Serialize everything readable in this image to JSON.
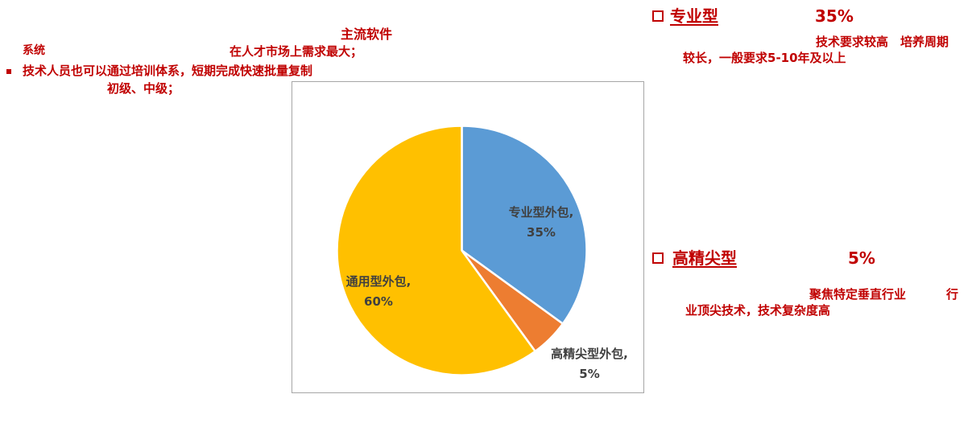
{
  "colors": {
    "accent_red": "#C00000",
    "chart_label_gray": "#404040",
    "chart_border_gray": "#A6A6A6"
  },
  "icons": {
    "section_bullet": "hollow-square-bullet",
    "list_bullet": "filled-square-bullet"
  },
  "annotations": {
    "system_fragment": "系统",
    "mainstream_software": "主流软件",
    "market_demand_line": "在人才市场上需求最大；",
    "training_line": "技术人员也可以通过培训体系，短期完成快速批量复制",
    "levels_line": "初级、中级；"
  },
  "professional_block": {
    "title": "专业型",
    "percent": "35%",
    "detail_part1": "技术要求较高",
    "detail_part2": "培养周期",
    "detail_line2": "较长，一般要求5-10年及以上"
  },
  "highend_block": {
    "title": "高精尖型",
    "percent": "5%",
    "detail_part1": "聚焦特定垂直行业",
    "detail_part2": "行",
    "detail_line2": "业顶尖技术，技术复杂度高"
  },
  "chart_data": {
    "type": "pie",
    "title": "",
    "start_angle_deg": 0,
    "direction": "clockwise",
    "legend": "none",
    "label_color": "#404040",
    "slices": [
      {
        "label": "专业型外包",
        "value": 35,
        "color": "#5B9BD5",
        "label_line1": "专业型外包,",
        "label_line2": "35%",
        "label_placement": "inside"
      },
      {
        "label": "高精尖型外包",
        "value": 5,
        "color": "#ED7D31",
        "label_line1": "高精尖型外包,",
        "label_line2": "5%",
        "label_placement": "outside-bottom-right"
      },
      {
        "label": "通用型外包",
        "value": 60,
        "color": "#FFC000",
        "label_line1": "通用型外包,",
        "label_line2": "60%",
        "label_placement": "inside"
      }
    ]
  }
}
